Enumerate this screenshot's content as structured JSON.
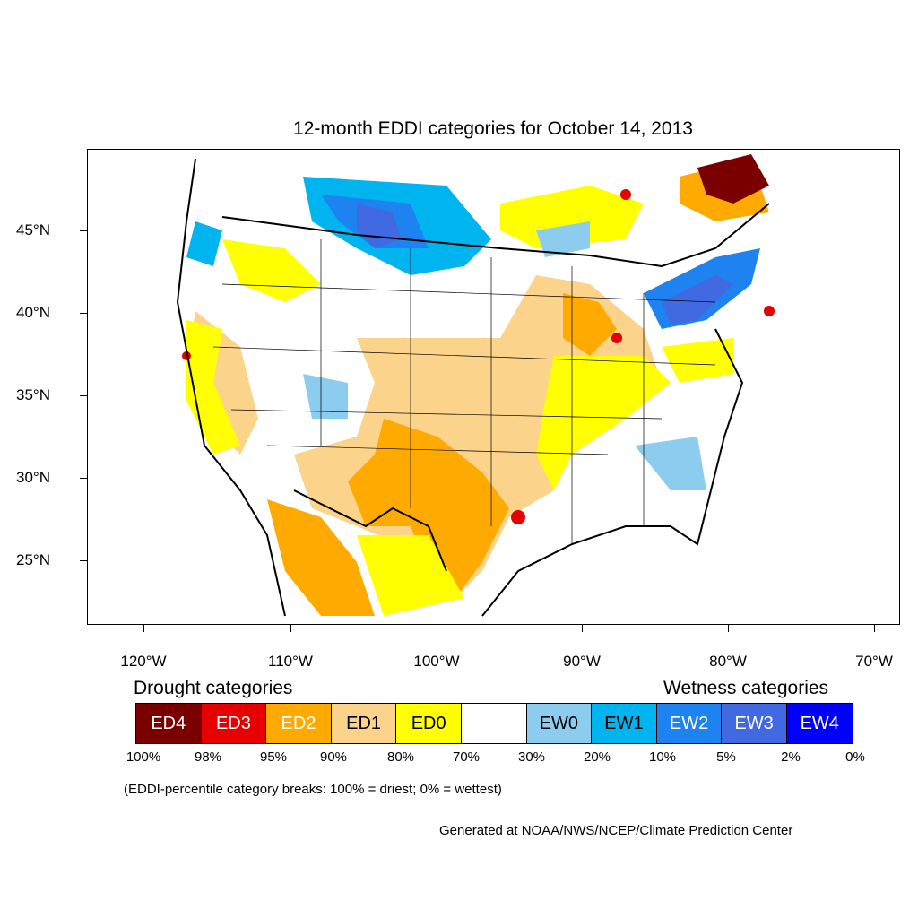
{
  "title": "12-month EDDI categories for October 14, 2013",
  "y_ticks": [
    "45°N",
    "40°N",
    "35°N",
    "30°N",
    "25°N"
  ],
  "x_ticks": [
    "120°W",
    "110°W",
    "100°W",
    "90°W",
    "80°W",
    "70°W"
  ],
  "legend": {
    "drought_heading": "Drought categories",
    "wetness_heading": "Wetness categories",
    "categories": [
      {
        "label": "ED4",
        "color": "#7a0000",
        "text_color": "#ffffff"
      },
      {
        "label": "ED3",
        "color": "#e60000",
        "text_color": "#ffffff"
      },
      {
        "label": "ED2",
        "color": "#ffaa00",
        "text_color": "#ffffff"
      },
      {
        "label": "ED1",
        "color": "#fcd38a",
        "text_color": "#000000"
      },
      {
        "label": "ED0",
        "color": "#ffff00",
        "text_color": "#000000"
      },
      {
        "label": "",
        "color": "#ffffff",
        "text_color": "#000000"
      },
      {
        "label": "EW0",
        "color": "#8ccdef",
        "text_color": "#000000"
      },
      {
        "label": "EW1",
        "color": "#00b4f0",
        "text_color": "#000000"
      },
      {
        "label": "EW2",
        "color": "#1e82f0",
        "text_color": "#ffffff"
      },
      {
        "label": "EW3",
        "color": "#4169e1",
        "text_color": "#ffffff"
      },
      {
        "label": "EW4",
        "color": "#0000ff",
        "text_color": "#ffffff"
      }
    ],
    "percentiles": [
      "100%",
      "98%",
      "95%",
      "90%",
      "80%",
      "70%",
      "30%",
      "20%",
      "10%",
      "5%",
      "2%",
      "0%"
    ]
  },
  "note": "(EDDI-percentile category breaks: 100% = driest; 0% = wettest)",
  "credit": "Generated at NOAA/NWS/NCEP/Climate Prediction Center"
}
